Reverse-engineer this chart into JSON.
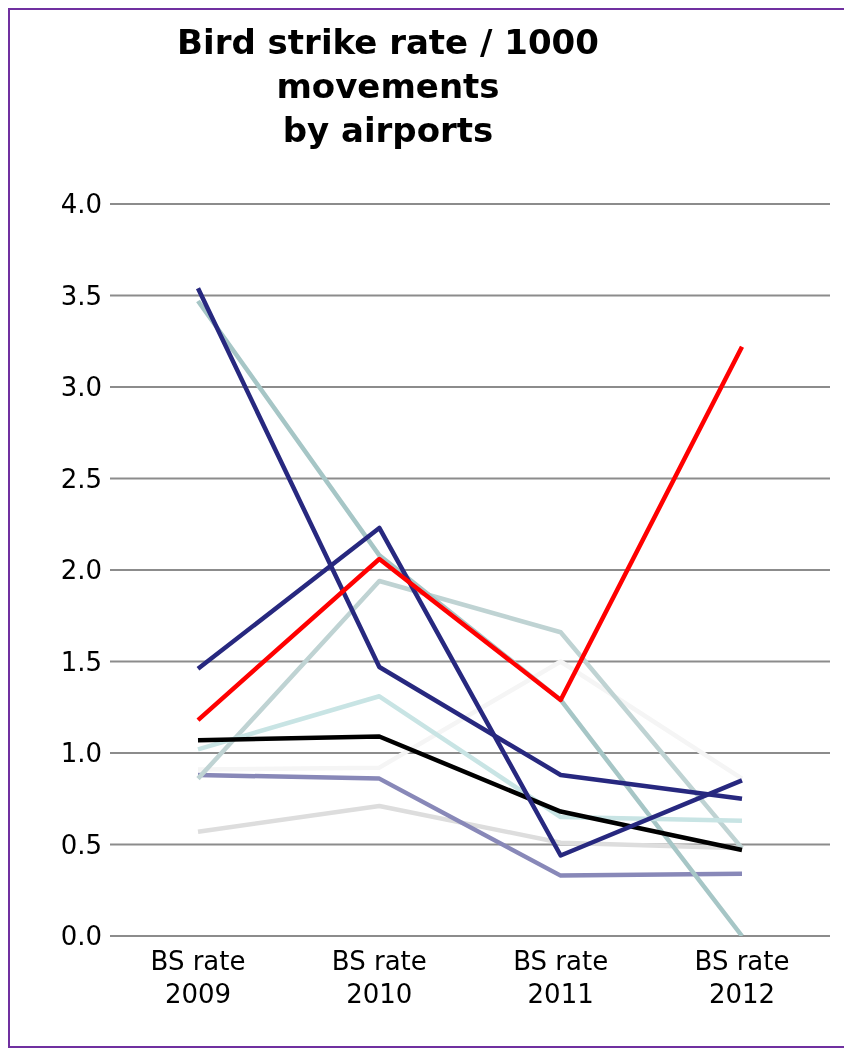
{
  "chart_data": {
    "type": "line",
    "title": "Bird strike rate / 1000\nmovements\nby airports",
    "categories": [
      "BS rate 2009",
      "BS rate 2010",
      "BS rate 2011",
      "BS rate 2012"
    ],
    "series": [
      {
        "color": "#dddddd",
        "values": [
          0.57,
          0.71,
          0.51,
          0.48
        ]
      },
      {
        "color": "#f5f5f5",
        "values": [
          0.91,
          0.92,
          1.5,
          0.86
        ]
      },
      {
        "color": "#8888b8",
        "values": [
          0.88,
          0.86,
          0.33,
          0.34
        ]
      },
      {
        "color": "#bfd3d3",
        "values": [
          0.86,
          1.94,
          1.66,
          0.48
        ]
      },
      {
        "color": "#a6c6c6",
        "values": [
          3.47,
          2.08,
          1.29,
          0.0
        ]
      },
      {
        "color": "#c8e4e4",
        "values": [
          1.02,
          1.31,
          0.65,
          0.63
        ]
      },
      {
        "color": "#000000",
        "values": [
          1.07,
          1.09,
          0.68,
          0.47
        ]
      },
      {
        "color": "#27287f",
        "values": [
          1.46,
          2.23,
          0.44,
          0.85
        ]
      },
      {
        "color": "#27287f",
        "values": [
          3.54,
          1.47,
          0.88,
          0.75
        ]
      },
      {
        "color": "#ff0000",
        "values": [
          1.18,
          2.06,
          1.29,
          3.22
        ]
      }
    ],
    "ylim": [
      0,
      4
    ],
    "yticks": [
      {
        "value": 0,
        "label": "0.0"
      },
      {
        "value": 0.5,
        "label": "0.5"
      },
      {
        "value": 1,
        "label": "1.0"
      },
      {
        "value": 1.5,
        "label": "1.5"
      },
      {
        "value": 2,
        "label": "2.0"
      },
      {
        "value": 2.5,
        "label": "2.5"
      },
      {
        "value": 3,
        "label": "3.0"
      },
      {
        "value": 3.5,
        "label": "3.5"
      },
      {
        "value": 4,
        "label": "4.0"
      }
    ],
    "grid": "y",
    "legend": false,
    "marker": "none",
    "line_style": "solid"
  }
}
